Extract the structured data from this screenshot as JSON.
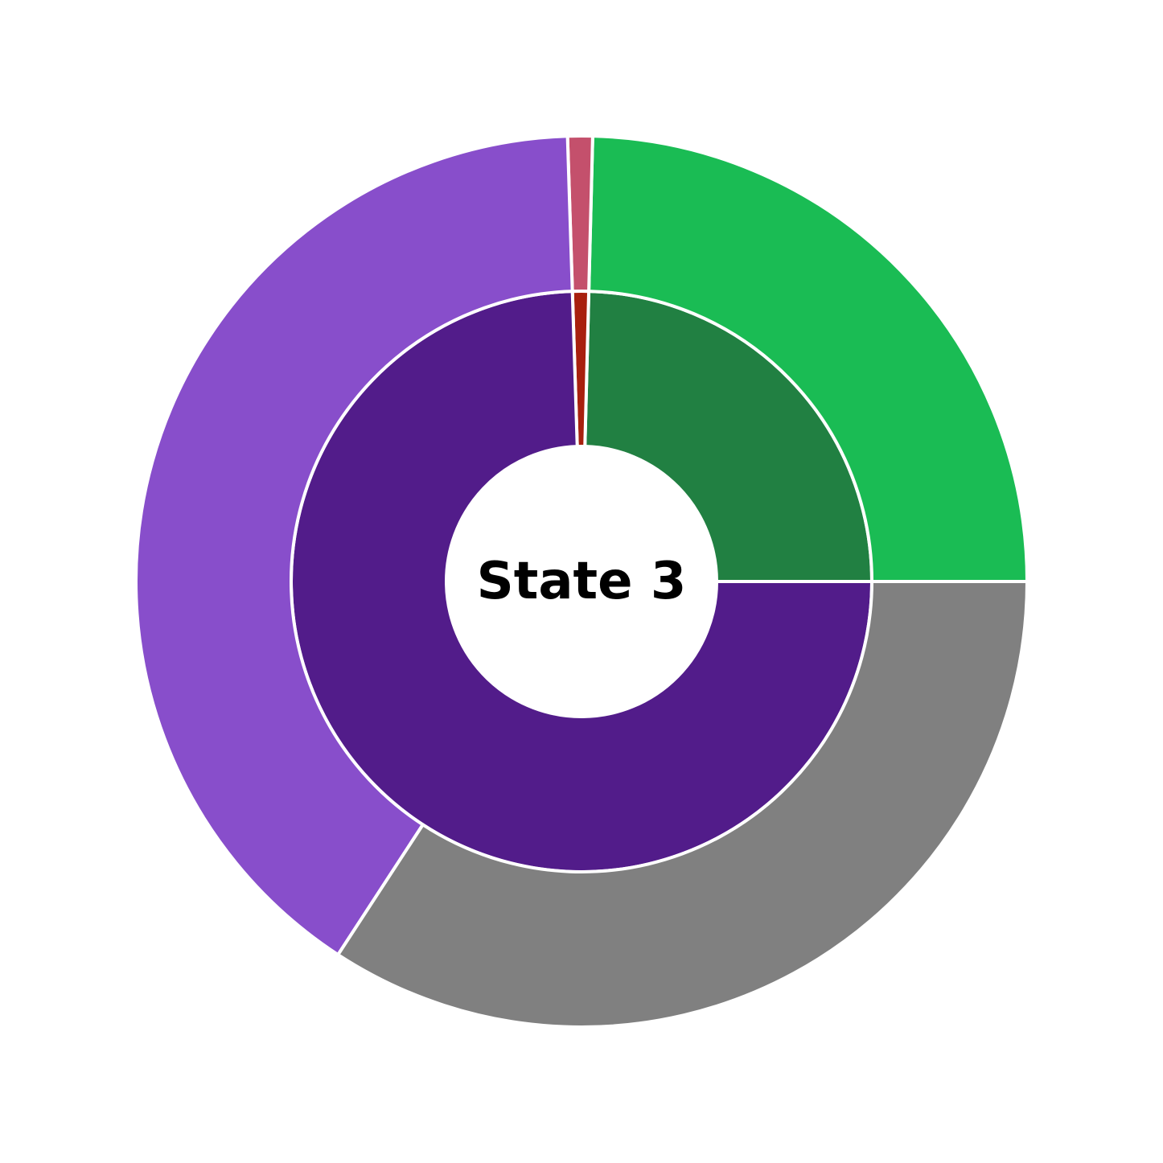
{
  "chart_data": {
    "type": "pie",
    "center_label": "State 3",
    "rings": [
      {
        "ring": "inner",
        "slices": [
          {
            "value": 24.6,
            "color": "#218042"
          },
          {
            "value": 0.9,
            "color": "#a8200e"
          },
          {
            "value": 74.5,
            "color": "#521c8a"
          }
        ]
      },
      {
        "ring": "outer",
        "slices": [
          {
            "value": 24.6,
            "color": "#1abc54"
          },
          {
            "value": 0.9,
            "color": "#c4506c"
          },
          {
            "value": 40.3,
            "color": "#884ecb"
          },
          {
            "value": 34.2,
            "color": "#808080"
          }
        ]
      }
    ],
    "start_angle_deg": 0,
    "direction": "counterclockwise",
    "edge_color": "#ffffff"
  }
}
